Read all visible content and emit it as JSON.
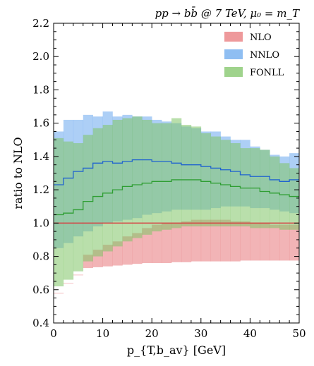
{
  "chart_data": {
    "type": "area",
    "title": "pp → bb̄ @ 7 TeV, μ₀ = m_T",
    "xlabel": "p_{T,b_av} [GeV]",
    "ylabel": "ratio to NLO",
    "xlim": [
      0,
      50
    ],
    "ylim": [
      0.4,
      2.2
    ],
    "x_ticks": [
      "0",
      "10",
      "20",
      "30",
      "40",
      "50"
    ],
    "y_ticks": [
      "0.4",
      "0.6",
      "0.8",
      "1.0",
      "1.2",
      "1.4",
      "1.6",
      "1.8",
      "2.0",
      "2.2"
    ],
    "grid": false,
    "legend_position": "top-right",
    "bin_edges": [
      0,
      2,
      4,
      6,
      8,
      10,
      12,
      14,
      16,
      18,
      20,
      22,
      24,
      26,
      28,
      30,
      32,
      34,
      36,
      38,
      40,
      42,
      44,
      46,
      48,
      50
    ],
    "series": [
      {
        "name": "NLO",
        "color": "#e8777a",
        "central": [
          1,
          1,
          1,
          1,
          1,
          1,
          1,
          1,
          1,
          1,
          1,
          1,
          1,
          1,
          1,
          1,
          1,
          1,
          1,
          1,
          1,
          1,
          1,
          1,
          1
        ],
        "upper": [
          0.58,
          0.64,
          0.69,
          0.81,
          0.84,
          0.87,
          0.89,
          0.92,
          0.94,
          0.97,
          0.99,
          1.0,
          1.0,
          1.01,
          1.02,
          1.02,
          1.02,
          1.02,
          1.01,
          1.01,
          1.0,
          1.0,
          0.99,
          0.99,
          0.99
        ],
        "lower": [
          0.58,
          0.64,
          0.69,
          0.73,
          0.735,
          0.74,
          0.745,
          0.75,
          0.755,
          0.76,
          0.76,
          0.76,
          0.765,
          0.765,
          0.77,
          0.77,
          0.77,
          0.77,
          0.77,
          0.775,
          0.775,
          0.775,
          0.775,
          0.775,
          0.775
        ]
      },
      {
        "name": "NNLO",
        "color": "#6aa8ee",
        "central": [
          1.23,
          1.27,
          1.31,
          1.33,
          1.36,
          1.37,
          1.36,
          1.37,
          1.38,
          1.38,
          1.37,
          1.37,
          1.36,
          1.35,
          1.35,
          1.34,
          1.33,
          1.32,
          1.31,
          1.29,
          1.28,
          1.28,
          1.26,
          1.25,
          1.26
        ],
        "upper": [
          1.55,
          1.62,
          1.62,
          1.65,
          1.64,
          1.67,
          1.64,
          1.65,
          1.64,
          1.64,
          1.62,
          1.61,
          1.6,
          1.58,
          1.57,
          1.55,
          1.55,
          1.52,
          1.5,
          1.5,
          1.46,
          1.44,
          1.41,
          1.4,
          1.42
        ],
        "lower": [
          0.85,
          0.88,
          0.92,
          0.95,
          0.98,
          1.0,
          1.01,
          1.02,
          1.03,
          1.05,
          1.06,
          1.07,
          1.08,
          1.08,
          1.08,
          1.08,
          1.09,
          1.1,
          1.1,
          1.1,
          1.09,
          1.09,
          1.08,
          1.07,
          1.06
        ]
      },
      {
        "name": "FONLL",
        "color": "#7fc466",
        "central": [
          1.05,
          1.06,
          1.08,
          1.13,
          1.16,
          1.18,
          1.2,
          1.22,
          1.23,
          1.24,
          1.25,
          1.25,
          1.26,
          1.26,
          1.26,
          1.25,
          1.24,
          1.23,
          1.22,
          1.21,
          1.21,
          1.19,
          1.18,
          1.17,
          1.16
        ],
        "upper": [
          1.51,
          1.49,
          1.48,
          1.53,
          1.57,
          1.59,
          1.62,
          1.63,
          1.64,
          1.62,
          1.6,
          1.6,
          1.63,
          1.59,
          1.58,
          1.54,
          1.52,
          1.5,
          1.48,
          1.45,
          1.45,
          1.44,
          1.4,
          1.36,
          1.33
        ],
        "lower": [
          0.62,
          0.66,
          0.71,
          0.77,
          0.8,
          0.83,
          0.86,
          0.89,
          0.91,
          0.93,
          0.95,
          0.96,
          0.97,
          0.98,
          0.98,
          0.98,
          0.98,
          0.98,
          0.98,
          0.98,
          0.97,
          0.97,
          0.97,
          0.96,
          0.96
        ]
      }
    ]
  }
}
